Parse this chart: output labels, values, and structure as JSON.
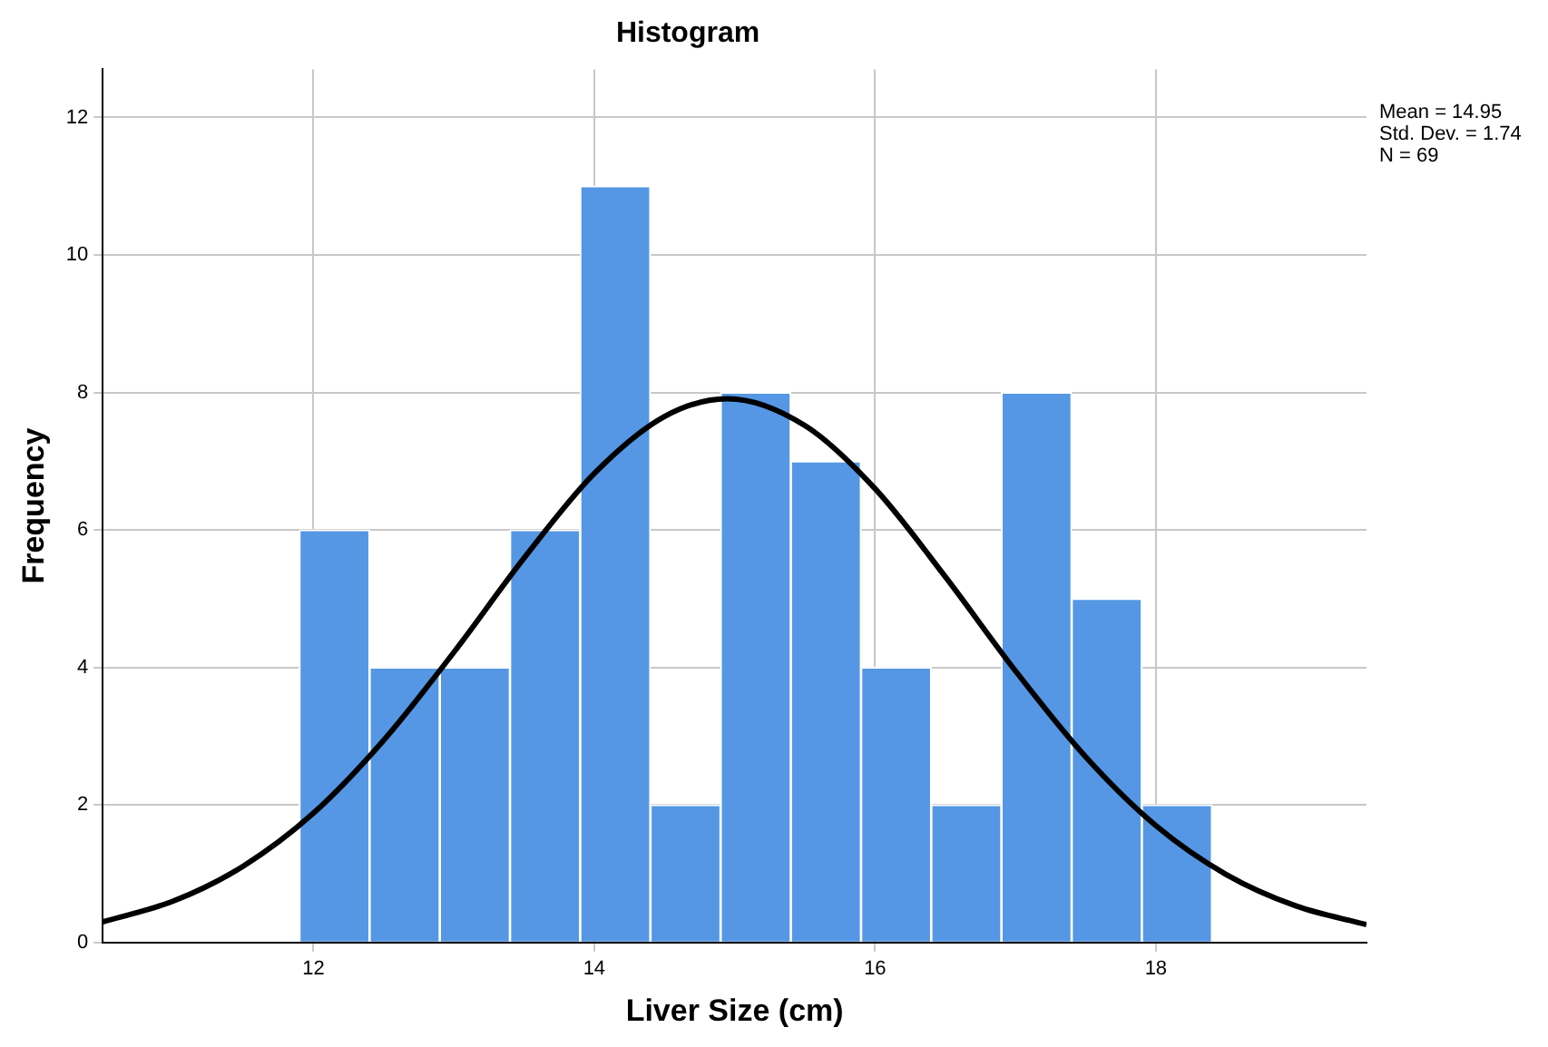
{
  "chart_data": {
    "type": "histogram",
    "title": "Histogram",
    "xlabel": "Liver Size (cm)",
    "ylabel": "Frequency",
    "bins": [
      11.9,
      12.4,
      12.9,
      13.4,
      13.9,
      14.4,
      14.9,
      15.4,
      15.9,
      16.4,
      16.9,
      17.4,
      17.9,
      18.4
    ],
    "values": [
      6,
      4,
      4,
      6,
      11,
      2,
      8,
      7,
      4,
      2,
      8,
      5,
      2
    ],
    "color": "#5597e4",
    "series": [
      {
        "type": "line",
        "color": "#000000",
        "x": [
          10.5,
          11,
          11.5,
          12,
          12.5,
          13,
          13.5,
          14,
          14.5,
          14.95,
          15.5,
          16,
          16.5,
          17,
          17.5,
          18,
          18.5,
          19,
          19.5
        ],
        "values": [
          0.3,
          0.6,
          1.11,
          1.88,
          2.94,
          4.22,
          5.59,
          6.82,
          7.65,
          7.91,
          7.52,
          6.6,
          5.32,
          3.95,
          2.7,
          1.7,
          0.99,
          0.53,
          0.26
        ]
      }
    ],
    "xlim": [
      10.5,
      19.5
    ],
    "xticks": [
      12,
      14,
      16,
      18
    ],
    "ylim": [
      0,
      12.7
    ],
    "yticks": [
      0,
      2,
      4,
      6,
      8,
      10,
      12
    ],
    "grid": true,
    "legend": false,
    "annotations": [
      "Mean = 14.95",
      "Std. Dev. = 1.74",
      "N = 69"
    ]
  }
}
